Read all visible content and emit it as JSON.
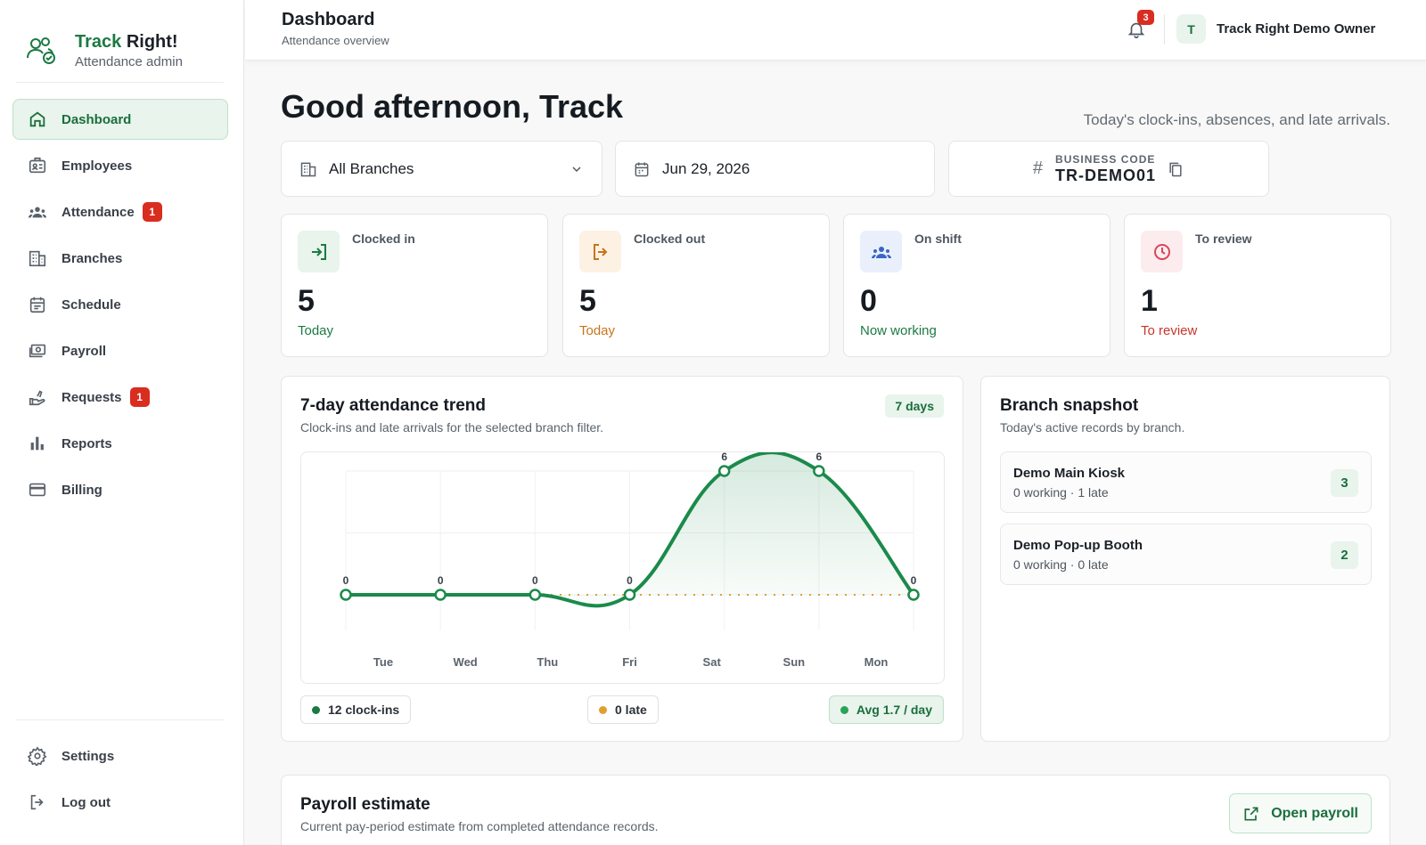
{
  "brand": {
    "name_part1": "Track",
    "name_part2": "Right!",
    "subtitle": "Attendance admin"
  },
  "nav": {
    "items": [
      {
        "label": "Dashboard",
        "icon": "home-icon",
        "active": true
      },
      {
        "label": "Employees",
        "icon": "id-card-icon"
      },
      {
        "label": "Attendance",
        "icon": "people-icon",
        "badge": "1"
      },
      {
        "label": "Branches",
        "icon": "building-icon"
      },
      {
        "label": "Schedule",
        "icon": "calendar-icon"
      },
      {
        "label": "Payroll",
        "icon": "money-icon"
      },
      {
        "label": "Requests",
        "icon": "hand-icon",
        "badge": "1"
      },
      {
        "label": "Reports",
        "icon": "bar-chart-icon"
      },
      {
        "label": "Billing",
        "icon": "credit-card-icon"
      }
    ],
    "bottom": [
      {
        "label": "Settings",
        "icon": "gear-icon"
      },
      {
        "label": "Log out",
        "icon": "logout-icon"
      }
    ]
  },
  "topbar": {
    "title": "Dashboard",
    "subtitle": "Attendance overview",
    "notification_count": "3",
    "avatar_initial": "T",
    "owner": "Track Right Demo Owner"
  },
  "main": {
    "greeting": "Good afternoon, Track",
    "greeting_sub": "Today's clock-ins, absences, and late arrivals.",
    "filters": {
      "branch": "All Branches",
      "date": "Jun 29, 2026",
      "code_label": "BUSINESS CODE",
      "code_value": "TR-DEMO01"
    },
    "stats": [
      {
        "label": "Clocked in",
        "value": "5",
        "foot": "Today",
        "color": "#1b7a43",
        "bg": "#e8f4ec",
        "icon": "login-icon"
      },
      {
        "label": "Clocked out",
        "value": "5",
        "foot": "Today",
        "color": "#c7741b",
        "bg": "#fdf1e4",
        "icon": "logout-icon"
      },
      {
        "label": "On shift",
        "value": "0",
        "foot": "Now working",
        "color": "#1b7a43",
        "bg": "#eaf0fb",
        "icon": "people-icon"
      },
      {
        "label": "To review",
        "value": "1",
        "foot": "To review",
        "color": "#c8352b",
        "bg": "#fdecee",
        "icon": "clock-icon"
      }
    ],
    "trend": {
      "title": "7-day attendance trend",
      "subtitle": "Clock-ins and late arrivals for the selected branch filter.",
      "range": "7 days",
      "clockins_total": "12 clock-ins",
      "late_total": "0 late",
      "avg": "Avg 1.7 / day"
    },
    "branch_snapshot": {
      "title": "Branch snapshot",
      "subtitle": "Today's active records by branch.",
      "rows": [
        {
          "name": "Demo Main Kiosk",
          "meta": "0 working · 1 late",
          "count": "3"
        },
        {
          "name": "Demo Pop-up Booth",
          "meta": "0 working · 0 late",
          "count": "2"
        }
      ]
    },
    "payroll": {
      "title": "Payroll estimate",
      "subtitle": "Current pay-period estimate from completed attendance records.",
      "button": "Open payroll"
    }
  },
  "colors": {
    "accent": "#1b7a43",
    "late": "#e0a030",
    "danger": "#d92d20"
  },
  "chart_data": {
    "type": "line",
    "x": [
      "Tue",
      "Wed",
      "Thu",
      "Fri",
      "Sat",
      "Sun",
      "Mon"
    ],
    "series": [
      {
        "values": [
          0,
          0,
          0,
          0,
          6,
          6,
          0
        ]
      },
      {
        "values": [
          0,
          0,
          0,
          0,
          0,
          0,
          0
        ]
      }
    ],
    "grid": true
  }
}
